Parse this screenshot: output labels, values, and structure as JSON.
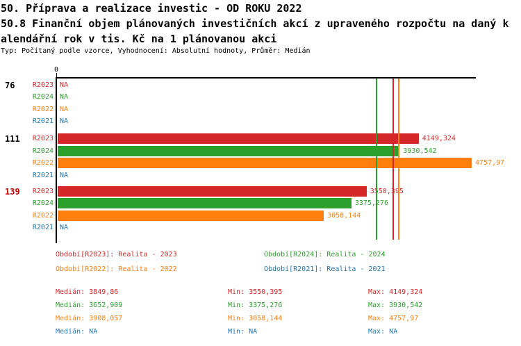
{
  "header": {
    "title_line1": "50. Příprava a realizace investic - OD ROKU 2022",
    "title_line2": "50.8 Finanční objem plánovaných investičních akcí z upraveného rozpočtu na daný k",
    "title_line3": "alendářní rok v tis. Kč na 1 plánovanou akci",
    "meta": "Typ: Počítaný podle vzorce, Vyhodnocení: Absolutní hodnoty, Průměr: Medián"
  },
  "colors": {
    "R2023": "#d62728",
    "R2024": "#2ca02c",
    "R2022": "#ff7f0e",
    "R2021": "#1f77b4",
    "highlight": "#cc0000",
    "normal_group": "#000000",
    "axis": "#000000"
  },
  "chart_data": {
    "type": "bar",
    "orientation": "horizontal",
    "title": "50.8 Finanční objem plánovaných investičních akcí z upraveného rozpočtu na daný kalendářní rok v tis. Kč na 1 plánovanou akci",
    "xlabel": "",
    "ylabel": "",
    "xlim": [
      0,
      4800
    ],
    "axis": {
      "tick_label": "0",
      "grid": false
    },
    "series_order": [
      "R2023",
      "R2024",
      "R2022",
      "R2021"
    ],
    "groups": [
      {
        "label": "76",
        "highlighted": false,
        "rows": [
          {
            "series": "R2023",
            "value": null,
            "display": "NA"
          },
          {
            "series": "R2024",
            "value": null,
            "display": "NA"
          },
          {
            "series": "R2022",
            "value": null,
            "display": "NA"
          },
          {
            "series": "R2021",
            "value": null,
            "display": "NA"
          }
        ]
      },
      {
        "label": "111",
        "highlighted": false,
        "rows": [
          {
            "series": "R2023",
            "value": 4149.324,
            "display": "4149,324"
          },
          {
            "series": "R2024",
            "value": 3930.542,
            "display": "3930,542"
          },
          {
            "series": "R2022",
            "value": 4757.97,
            "display": "4757,97"
          },
          {
            "series": "R2021",
            "value": null,
            "display": "NA"
          }
        ]
      },
      {
        "label": "139",
        "highlighted": true,
        "rows": [
          {
            "series": "R2023",
            "value": 3550.395,
            "display": "3550,395"
          },
          {
            "series": "R2024",
            "value": 3375.276,
            "display": "3375,276"
          },
          {
            "series": "R2022",
            "value": 3058.144,
            "display": "3058,144"
          },
          {
            "series": "R2021",
            "value": null,
            "display": "NA"
          }
        ]
      }
    ],
    "medians": [
      {
        "series": "R2023",
        "value": 3849.86
      },
      {
        "series": "R2024",
        "value": 3652.909
      },
      {
        "series": "R2022",
        "value": 3908.057
      },
      {
        "series": "R2021",
        "value": null
      }
    ],
    "legend_position": "bottom"
  },
  "legend": {
    "items": [
      {
        "series": "R2023",
        "label": "Období[R2023]: Realita - 2023"
      },
      {
        "series": "R2024",
        "label": "Období[R2024]: Realita - 2024"
      },
      {
        "series": "R2022",
        "label": "Období[R2022]: Realita - 2022"
      },
      {
        "series": "R2021",
        "label": "Období[R2021]: Realita - 2021"
      }
    ]
  },
  "stats": {
    "median_label": "Medián",
    "min_label": "Min",
    "max_label": "Max",
    "rows": [
      {
        "series": "R2023",
        "median": "3849,86",
        "min": "3550,395",
        "max": "4149,324"
      },
      {
        "series": "R2024",
        "median": "3652,909",
        "min": "3375,276",
        "max": "3930,542"
      },
      {
        "series": "R2022",
        "median": "3908,057",
        "min": "3058,144",
        "max": "4757,97"
      },
      {
        "series": "R2021",
        "median": "NA",
        "min": "NA",
        "max": "NA"
      }
    ]
  }
}
